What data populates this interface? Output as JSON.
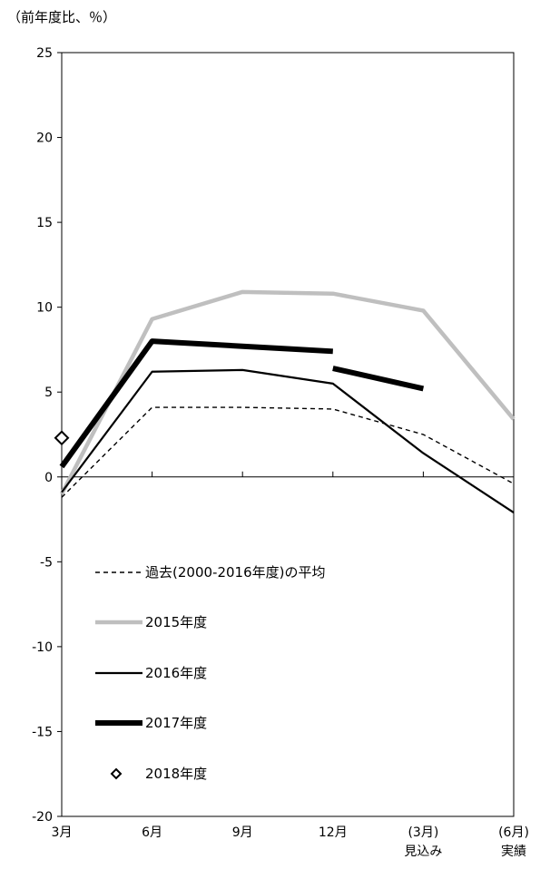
{
  "chart_data": {
    "type": "line",
    "unit_label": "（前年度比、％）",
    "categories": [
      {
        "id": "mar",
        "line1": "3月",
        "line2": ""
      },
      {
        "id": "jun",
        "line1": "6月",
        "line2": ""
      },
      {
        "id": "sep",
        "line1": "9月",
        "line2": ""
      },
      {
        "id": "dec",
        "line1": "12月",
        "line2": ""
      },
      {
        "id": "mar_fc",
        "line1": "(3月)",
        "line2": "見込み"
      },
      {
        "id": "jun_act",
        "line1": "(6月)",
        "line2": "実績"
      }
    ],
    "ylim": [
      -20,
      25
    ],
    "yticks": [
      -20,
      -15,
      -10,
      -5,
      0,
      5,
      10,
      15,
      20,
      25
    ],
    "ytick_labels": [
      "-20",
      "-15",
      "-10",
      "-5",
      "0",
      "5",
      "10",
      "15",
      "20",
      "25"
    ],
    "series": [
      {
        "name": "過去(2000-2016年度)の平均",
        "style": "dashed",
        "color": "#000000",
        "segments": [
          {
            "x": [
              0,
              1,
              2,
              3,
              4,
              5
            ],
            "y": [
              -1.2,
              4.1,
              4.1,
              4.0,
              2.5,
              -0.4
            ]
          }
        ]
      },
      {
        "name": "2015年度",
        "style": "thick",
        "color": "#bfbfbf",
        "segments": [
          {
            "x": [
              0,
              1,
              2,
              3,
              4,
              5
            ],
            "y": [
              -1.0,
              9.3,
              10.9,
              10.8,
              9.8,
              3.4
            ]
          }
        ]
      },
      {
        "name": "2016年度",
        "style": "thin",
        "color": "#000000",
        "segments": [
          {
            "x": [
              0,
              1,
              2,
              3,
              4,
              5
            ],
            "y": [
              -0.9,
              6.2,
              6.3,
              5.5,
              1.4,
              -2.1
            ]
          }
        ]
      },
      {
        "name": "2017年度",
        "style": "heavy",
        "color": "#000000",
        "segments": [
          {
            "x": [
              0,
              1,
              2,
              3
            ],
            "y": [
              0.6,
              8.0,
              7.7,
              7.4
            ]
          },
          {
            "x": [
              3,
              4
            ],
            "y": [
              6.4,
              5.2
            ]
          }
        ]
      },
      {
        "name": "2018年度",
        "style": "marker",
        "color": "#000000",
        "points": [
          {
            "x": 0,
            "y": 2.3
          }
        ]
      }
    ],
    "legend_placement": "lower-left"
  }
}
